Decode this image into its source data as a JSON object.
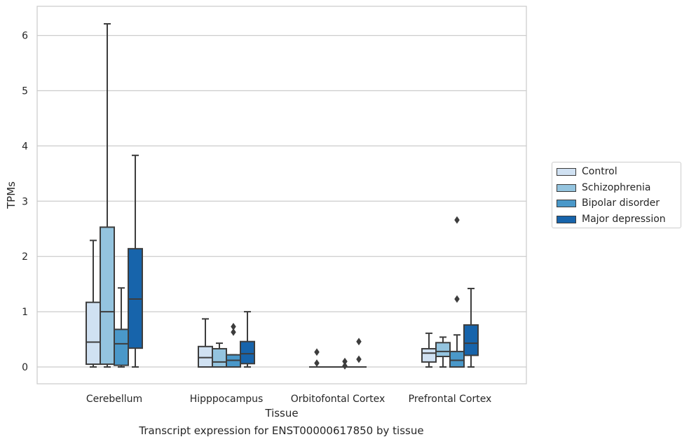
{
  "caption": "Transcript expression for ENST00000617850 by tissue",
  "chart_data": {
    "type": "box",
    "xlabel": "Tissue",
    "ylabel": "TPMs",
    "ylim": [
      -0.3,
      6.5
    ],
    "yticks": [
      0,
      1,
      2,
      3,
      4,
      5,
      6
    ],
    "grid": "horizontal",
    "legend_position": "right",
    "categories": [
      "Cerebellum",
      "Hipppocampus",
      "Orbitofontal Cortex",
      "Prefrontal Cortex"
    ],
    "series": [
      {
        "name": "Control",
        "color": "#d0e1f2",
        "boxes": [
          {
            "min": 0,
            "q1": 0.05,
            "median": 0.45,
            "q3": 1.17,
            "max": 2.29,
            "outliers": []
          },
          {
            "min": 0,
            "q1": 0,
            "median": 0.17,
            "q3": 0.37,
            "max": 0.87,
            "outliers": []
          },
          {
            "min": 0,
            "q1": 0,
            "median": 0,
            "q3": 0,
            "max": 0,
            "outliers": [
              0.27,
              0.07
            ]
          },
          {
            "min": 0,
            "q1": 0.09,
            "median": 0.25,
            "q3": 0.33,
            "max": 0.61,
            "outliers": []
          }
        ]
      },
      {
        "name": "Schizophrenia",
        "color": "#94c4df",
        "boxes": [
          {
            "min": 0,
            "q1": 0.05,
            "median": 1.0,
            "q3": 2.53,
            "max": 6.21,
            "outliers": []
          },
          {
            "min": 0,
            "q1": 0,
            "median": 0.09,
            "q3": 0.33,
            "max": 0.43,
            "outliers": []
          },
          {
            "min": 0,
            "q1": 0,
            "median": 0,
            "q3": 0,
            "max": 0,
            "outliers": []
          },
          {
            "min": 0,
            "q1": 0.19,
            "median": 0.28,
            "q3": 0.44,
            "max": 0.54,
            "outliers": []
          }
        ]
      },
      {
        "name": "Bipolar disorder",
        "color": "#4a98c9",
        "boxes": [
          {
            "min": 0,
            "q1": 0.03,
            "median": 0.42,
            "q3": 0.68,
            "max": 1.43,
            "outliers": []
          },
          {
            "min": 0,
            "q1": 0,
            "median": 0.12,
            "q3": 0.22,
            "max": 0.22,
            "outliers": [
              0.73,
              0.63
            ]
          },
          {
            "min": 0,
            "q1": 0,
            "median": 0,
            "q3": 0,
            "max": 0,
            "outliers": [
              0.1,
              0.02
            ]
          },
          {
            "min": 0,
            "q1": 0,
            "median": 0.12,
            "q3": 0.28,
            "max": 0.58,
            "outliers": [
              2.66,
              1.23
            ]
          }
        ]
      },
      {
        "name": "Major depression",
        "color": "#1764ab",
        "boxes": [
          {
            "min": 0,
            "q1": 0.34,
            "median": 1.23,
            "q3": 2.14,
            "max": 3.83,
            "outliers": []
          },
          {
            "min": 0,
            "q1": 0.06,
            "median": 0.24,
            "q3": 0.46,
            "max": 1.0,
            "outliers": []
          },
          {
            "min": 0,
            "q1": 0,
            "median": 0,
            "q3": 0,
            "max": 0,
            "outliers": [
              0.46,
              0.14
            ]
          },
          {
            "min": 0,
            "q1": 0.21,
            "median": 0.43,
            "q3": 0.76,
            "max": 1.42,
            "outliers": []
          }
        ]
      }
    ]
  }
}
